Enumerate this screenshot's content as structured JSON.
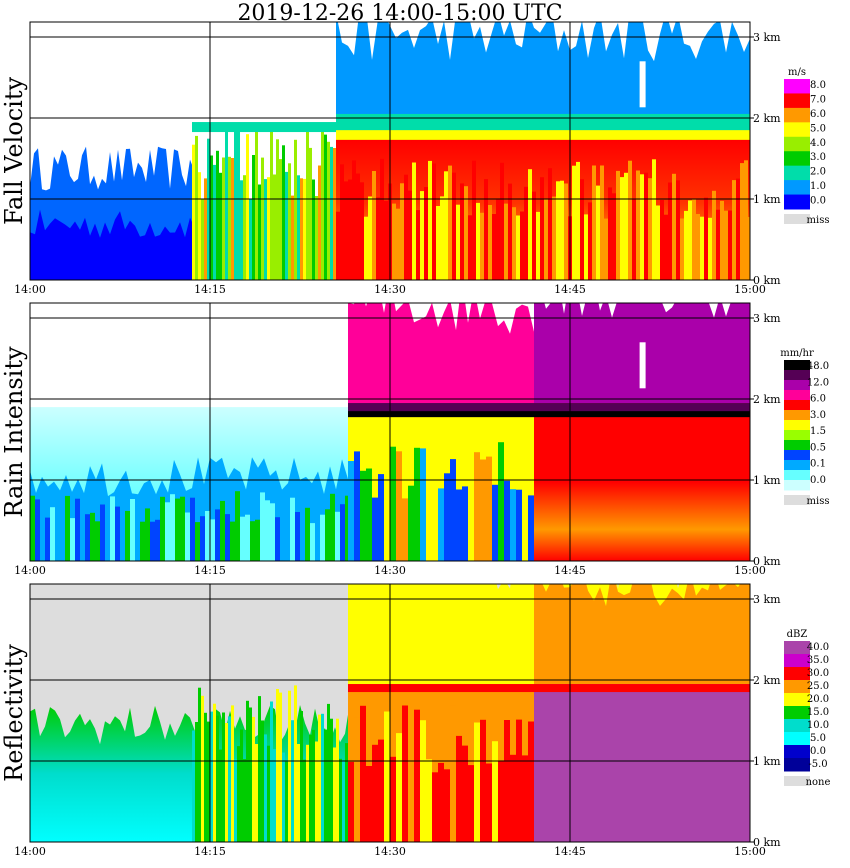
{
  "title": "2019-12-26   14:00-15:00 UTC",
  "chart_data": [
    {
      "type": "heatmap",
      "panel_label": "Fall Velocity",
      "x_ticks": [
        "14:00",
        "14:15",
        "14:30",
        "14:45",
        "15:00"
      ],
      "y_ticks": [
        "0 km",
        "1 km",
        "2 km",
        "3 km"
      ],
      "ylim": [
        0,
        3.4
      ],
      "legend": {
        "unit": "m/s",
        "levels": [
          "8.0",
          "7.0",
          "6.0",
          "5.0",
          "4.0",
          "3.0",
          "2.0",
          "1.0",
          "0.0"
        ],
        "colors": [
          "#ff00ff",
          "#ff0000",
          "#ff9900",
          "#ffff00",
          "#99ee00",
          "#00cc00",
          "#00ddaa",
          "#0099ff",
          "#0000ff"
        ],
        "missing_label": "miss",
        "missing_color": "#dddddd"
      }
    },
    {
      "type": "heatmap",
      "panel_label": "Rain Intensity",
      "x_ticks": [
        "14:00",
        "14:15",
        "14:30",
        "14:45",
        "15:00"
      ],
      "y_ticks": [
        "0 km",
        "1 km",
        "2 km",
        "3 km"
      ],
      "ylim": [
        0,
        3.4
      ],
      "legend": {
        "unit": "mm/hr",
        "levels": [
          "48.0",
          "12.0",
          "6.0",
          "3.0",
          "1.5",
          "0.5",
          "0.1",
          "0.0"
        ],
        "colors": [
          "#000000",
          "#550055",
          "#aa00aa",
          "#ff0099",
          "#ff0000",
          "#ff9900",
          "#ffff00",
          "#99ff00",
          "#00cc00",
          "#0044ff",
          "#00aaff",
          "#66ffff",
          "#ccffff"
        ],
        "missing_label": "miss",
        "missing_color": "#dddddd"
      }
    },
    {
      "type": "heatmap",
      "panel_label": "Reflectivity",
      "x_ticks": [
        "14:00",
        "14:15",
        "14:30",
        "14:45",
        "15:00"
      ],
      "y_ticks": [
        "0 km",
        "1 km",
        "2 km",
        "3 km"
      ],
      "ylim": [
        0,
        3.4
      ],
      "legend": {
        "unit": "dBZ",
        "levels": [
          "40.0",
          "35.0",
          "30.0",
          "25.0",
          "20.0",
          "15.0",
          "10.0",
          "5.0",
          "0.0",
          "-5.0"
        ],
        "colors": [
          "#aa44aa",
          "#cc00cc",
          "#ff0000",
          "#ff9900",
          "#ffff00",
          "#00cc00",
          "#00ddcc",
          "#00ffff",
          "#0000cc",
          "#000099"
        ],
        "missing_label": "none",
        "missing_color": "#dddddd"
      }
    }
  ]
}
